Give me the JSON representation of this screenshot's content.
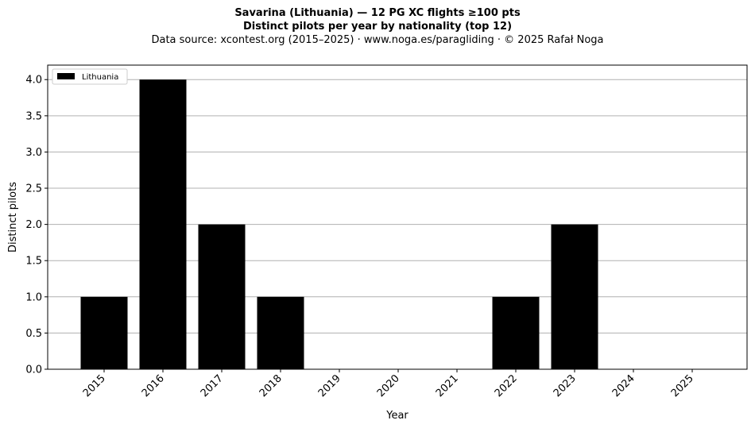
{
  "title": {
    "line1": "Savarina (Lithuania)  —  12 PG XC flights ≥100 pts",
    "line2": "Distinct pilots per year by nationality (top 12)",
    "source": "Data source: xcontest.org (2015–2025)  ·  www.noga.es/paragliding  ·  © 2025 Rafał Noga"
  },
  "colors": {
    "bar": "#000000",
    "grid": "#b0b0b0",
    "axis": "#000000"
  },
  "chart_data": {
    "type": "bar",
    "categories": [
      "2015",
      "2016",
      "2017",
      "2018",
      "2019",
      "2020",
      "2021",
      "2022",
      "2023",
      "2024",
      "2025"
    ],
    "series": [
      {
        "name": "Lithuania",
        "values": [
          1,
          4,
          2,
          1,
          0,
          0,
          0,
          1,
          2,
          0,
          0
        ]
      }
    ],
    "xlabel": "Year",
    "ylabel": "Distinct pilots",
    "ylim": [
      0,
      4.2
    ],
    "yticks": [
      "0.0",
      "0.5",
      "1.0",
      "1.5",
      "2.0",
      "2.5",
      "3.0",
      "3.5",
      "4.0"
    ],
    "grid": "horizontal",
    "legend": "top-left"
  }
}
